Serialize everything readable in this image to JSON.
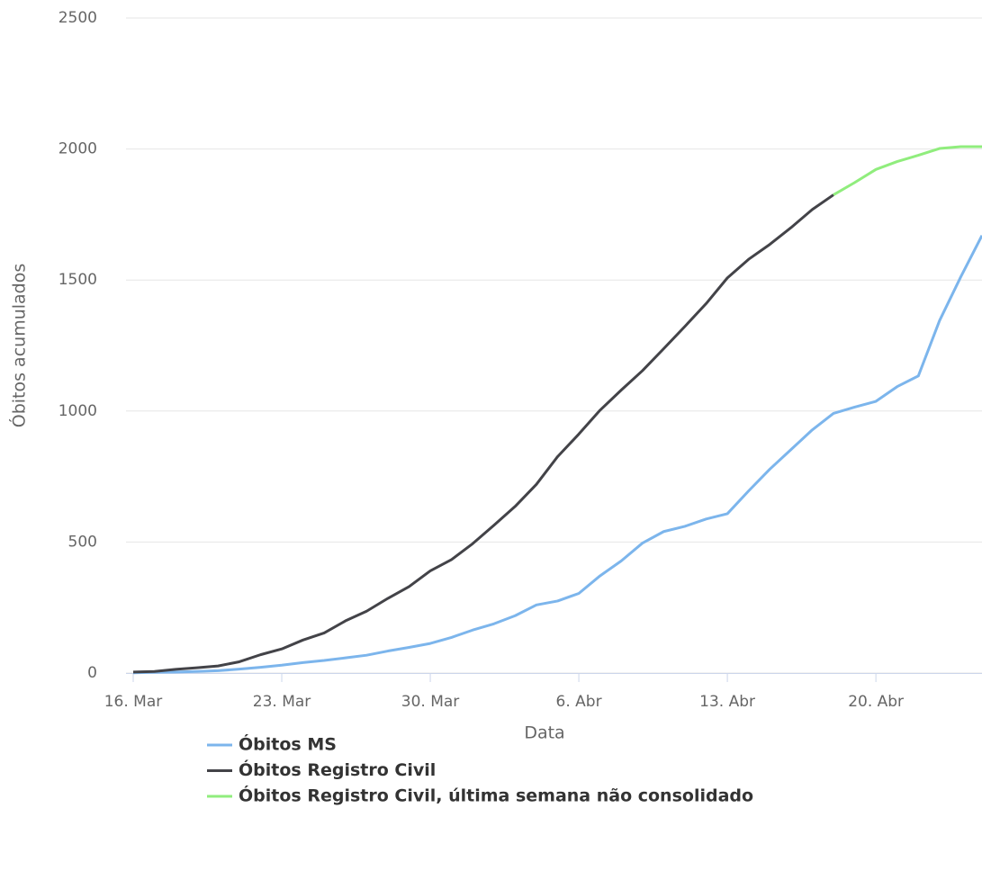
{
  "chart_data": {
    "type": "line",
    "x_label": "Data",
    "y_label": "Óbitos acumulados",
    "x": [
      "03-16",
      "03-17",
      "03-18",
      "03-19",
      "03-20",
      "03-21",
      "03-22",
      "03-23",
      "03-24",
      "03-25",
      "03-26",
      "03-27",
      "03-28",
      "03-29",
      "03-30",
      "03-31",
      "04-01",
      "04-02",
      "04-03",
      "04-04",
      "04-05",
      "04-06",
      "04-07",
      "04-08",
      "04-09",
      "04-10",
      "04-11",
      "04-12",
      "04-13",
      "04-14",
      "04-15",
      "04-16",
      "04-17",
      "04-18",
      "04-19",
      "04-20",
      "04-21",
      "04-22",
      "04-23",
      "04-24",
      "04-25"
    ],
    "xlim": [
      "03-16",
      "04-25"
    ],
    "xticks": [
      {
        "value": "03-16",
        "label": "16. Mar"
      },
      {
        "value": "03-23",
        "label": "23. Mar"
      },
      {
        "value": "03-30",
        "label": "30. Mar"
      },
      {
        "value": "04-06",
        "label": "6. Abr"
      },
      {
        "value": "04-13",
        "label": "13. Abr"
      },
      {
        "value": "04-20",
        "label": "20. Abr"
      }
    ],
    "ylim": [
      0,
      2500
    ],
    "yticks": [
      0,
      500,
      1000,
      1500,
      2000,
      2500
    ],
    "grid": true,
    "legend": "bottom",
    "series": [
      {
        "name": "Óbitos MS",
        "color": "#7cb5ec",
        "values": [
          1,
          3,
          4,
          6,
          9,
          15,
          22,
          30,
          40,
          48,
          58,
          68,
          84,
          98,
          113,
          136,
          164,
          188,
          219,
          260,
          275,
          304,
          371,
          428,
          496,
          540,
          560,
          588,
          608,
          695,
          778,
          853,
          928,
          991,
          1015,
          1037,
          1093,
          1134,
          1345,
          1512,
          1670
        ]
      },
      {
        "name": "Óbitos Registro Civil",
        "color": "#434348",
        "values": [
          4,
          6,
          14,
          20,
          27,
          43,
          70,
          92,
          126,
          153,
          199,
          236,
          285,
          330,
          390,
          433,
          494,
          564,
          636,
          720,
          826,
          912,
          1003,
          1080,
          1154,
          1238,
          1323,
          1410,
          1508,
          1579,
          1636,
          1700,
          1769,
          1825,
          null,
          null,
          null,
          null,
          null,
          null,
          null
        ]
      },
      {
        "name": "Óbitos Registro Civil, última semana não consolidado",
        "color": "#90ed7d",
        "values": [
          null,
          null,
          null,
          null,
          null,
          null,
          null,
          null,
          null,
          null,
          null,
          null,
          null,
          null,
          null,
          null,
          null,
          null,
          null,
          null,
          null,
          null,
          null,
          null,
          null,
          null,
          null,
          null,
          null,
          null,
          null,
          null,
          null,
          1825,
          1872,
          1922,
          1952,
          1976,
          2002,
          2009,
          2009
        ]
      }
    ]
  }
}
